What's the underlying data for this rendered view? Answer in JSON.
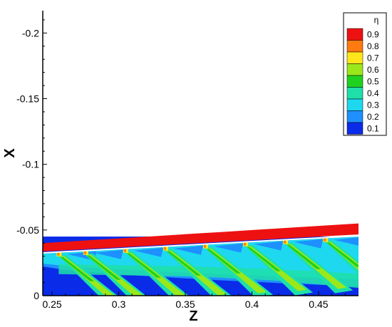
{
  "chart_data": {
    "type": "heatmap",
    "title": "",
    "xlabel": "Z",
    "ylabel": "X",
    "x_range": [
      0.243,
      0.48
    ],
    "y_range": [
      0,
      -0.217
    ],
    "y_inverted": true,
    "x_ticks": [
      {
        "value": 0.25,
        "label": "0.25"
      },
      {
        "value": 0.3,
        "label": "0.3"
      },
      {
        "value": 0.35,
        "label": "0.35"
      },
      {
        "value": 0.4,
        "label": "0.4"
      },
      {
        "value": 0.45,
        "label": "0.45"
      }
    ],
    "y_ticks": [
      {
        "value": -0.2,
        "label": "-0.2"
      },
      {
        "value": -0.15,
        "label": "-0.15"
      },
      {
        "value": -0.1,
        "label": "-0.1"
      },
      {
        "value": -0.05,
        "label": "-0.05"
      },
      {
        "value": 0,
        "label": "0"
      }
    ],
    "legend": {
      "title": "η",
      "position": "top-right",
      "levels": [
        {
          "value": 0.9,
          "label": "0.9",
          "color": "#ee1111"
        },
        {
          "value": 0.8,
          "label": "0.8",
          "color": "#ff7a10"
        },
        {
          "value": 0.7,
          "label": "0.7",
          "color": "#ffe61a"
        },
        {
          "value": 0.6,
          "label": "0.6",
          "color": "#9be81a"
        },
        {
          "value": 0.5,
          "label": "0.5",
          "color": "#1fd21f"
        },
        {
          "value": 0.4,
          "label": "0.4",
          "color": "#1ee0a8"
        },
        {
          "value": 0.3,
          "label": "0.3",
          "color": "#1ed8f0"
        },
        {
          "value": 0.2,
          "label": "0.2",
          "color": "#1e90ff"
        },
        {
          "value": 0.1,
          "label": "0.1",
          "color": "#0a2be8"
        }
      ]
    },
    "regions": {
      "wall_band": {
        "eta": 0.9,
        "z": [
          0.243,
          0.48
        ],
        "x_bottom": [
          -0.032,
          -0.045
        ],
        "x_top": [
          -0.04,
          -0.055
        ]
      },
      "hole_z": [
        0.255,
        0.275,
        0.305,
        0.335,
        0.365,
        0.395,
        0.425,
        0.455
      ],
      "streak_low_eta": 0.4,
      "streak_high_eta": 0.6,
      "background_eta": 0.1
    },
    "grid": false
  }
}
